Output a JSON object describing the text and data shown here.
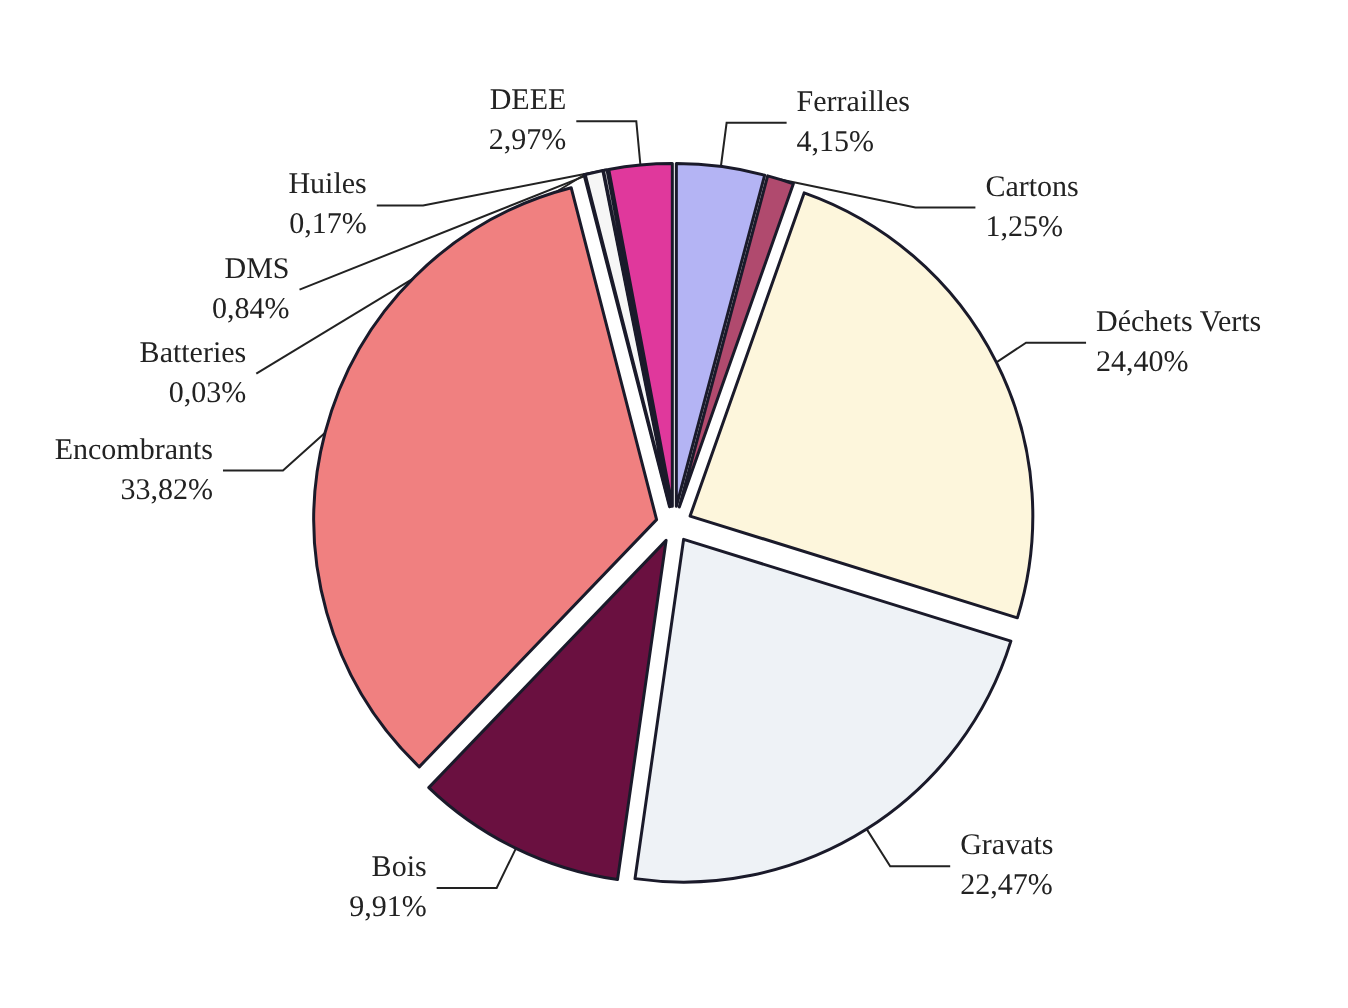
{
  "chart_data": {
    "type": "pie",
    "categories": [
      "Ferrailles",
      "Cartons",
      "Déchets Verts",
      "Gravats",
      "Bois",
      "Encombrants",
      "Batteries",
      "DMS",
      "Huiles",
      "DEEE"
    ],
    "values": [
      4.15,
      1.25,
      24.4,
      22.47,
      9.91,
      33.82,
      0.03,
      0.84,
      0.17,
      2.97
    ],
    "value_labels": [
      "4,15%",
      "1,25%",
      "24,40%",
      "22,47%",
      "9,91%",
      "33,82%",
      "0,03%",
      "0,84%",
      "0,17%",
      "2,97%"
    ],
    "colors": [
      "#b4b4f4",
      "#b04a6e",
      "#fdf6dc",
      "#eef2f6",
      "#6a1040",
      "#f08080",
      "#ffffff",
      "#f6f6f6",
      "#e8e8e8",
      "#e0389c"
    ],
    "legend": false
  }
}
